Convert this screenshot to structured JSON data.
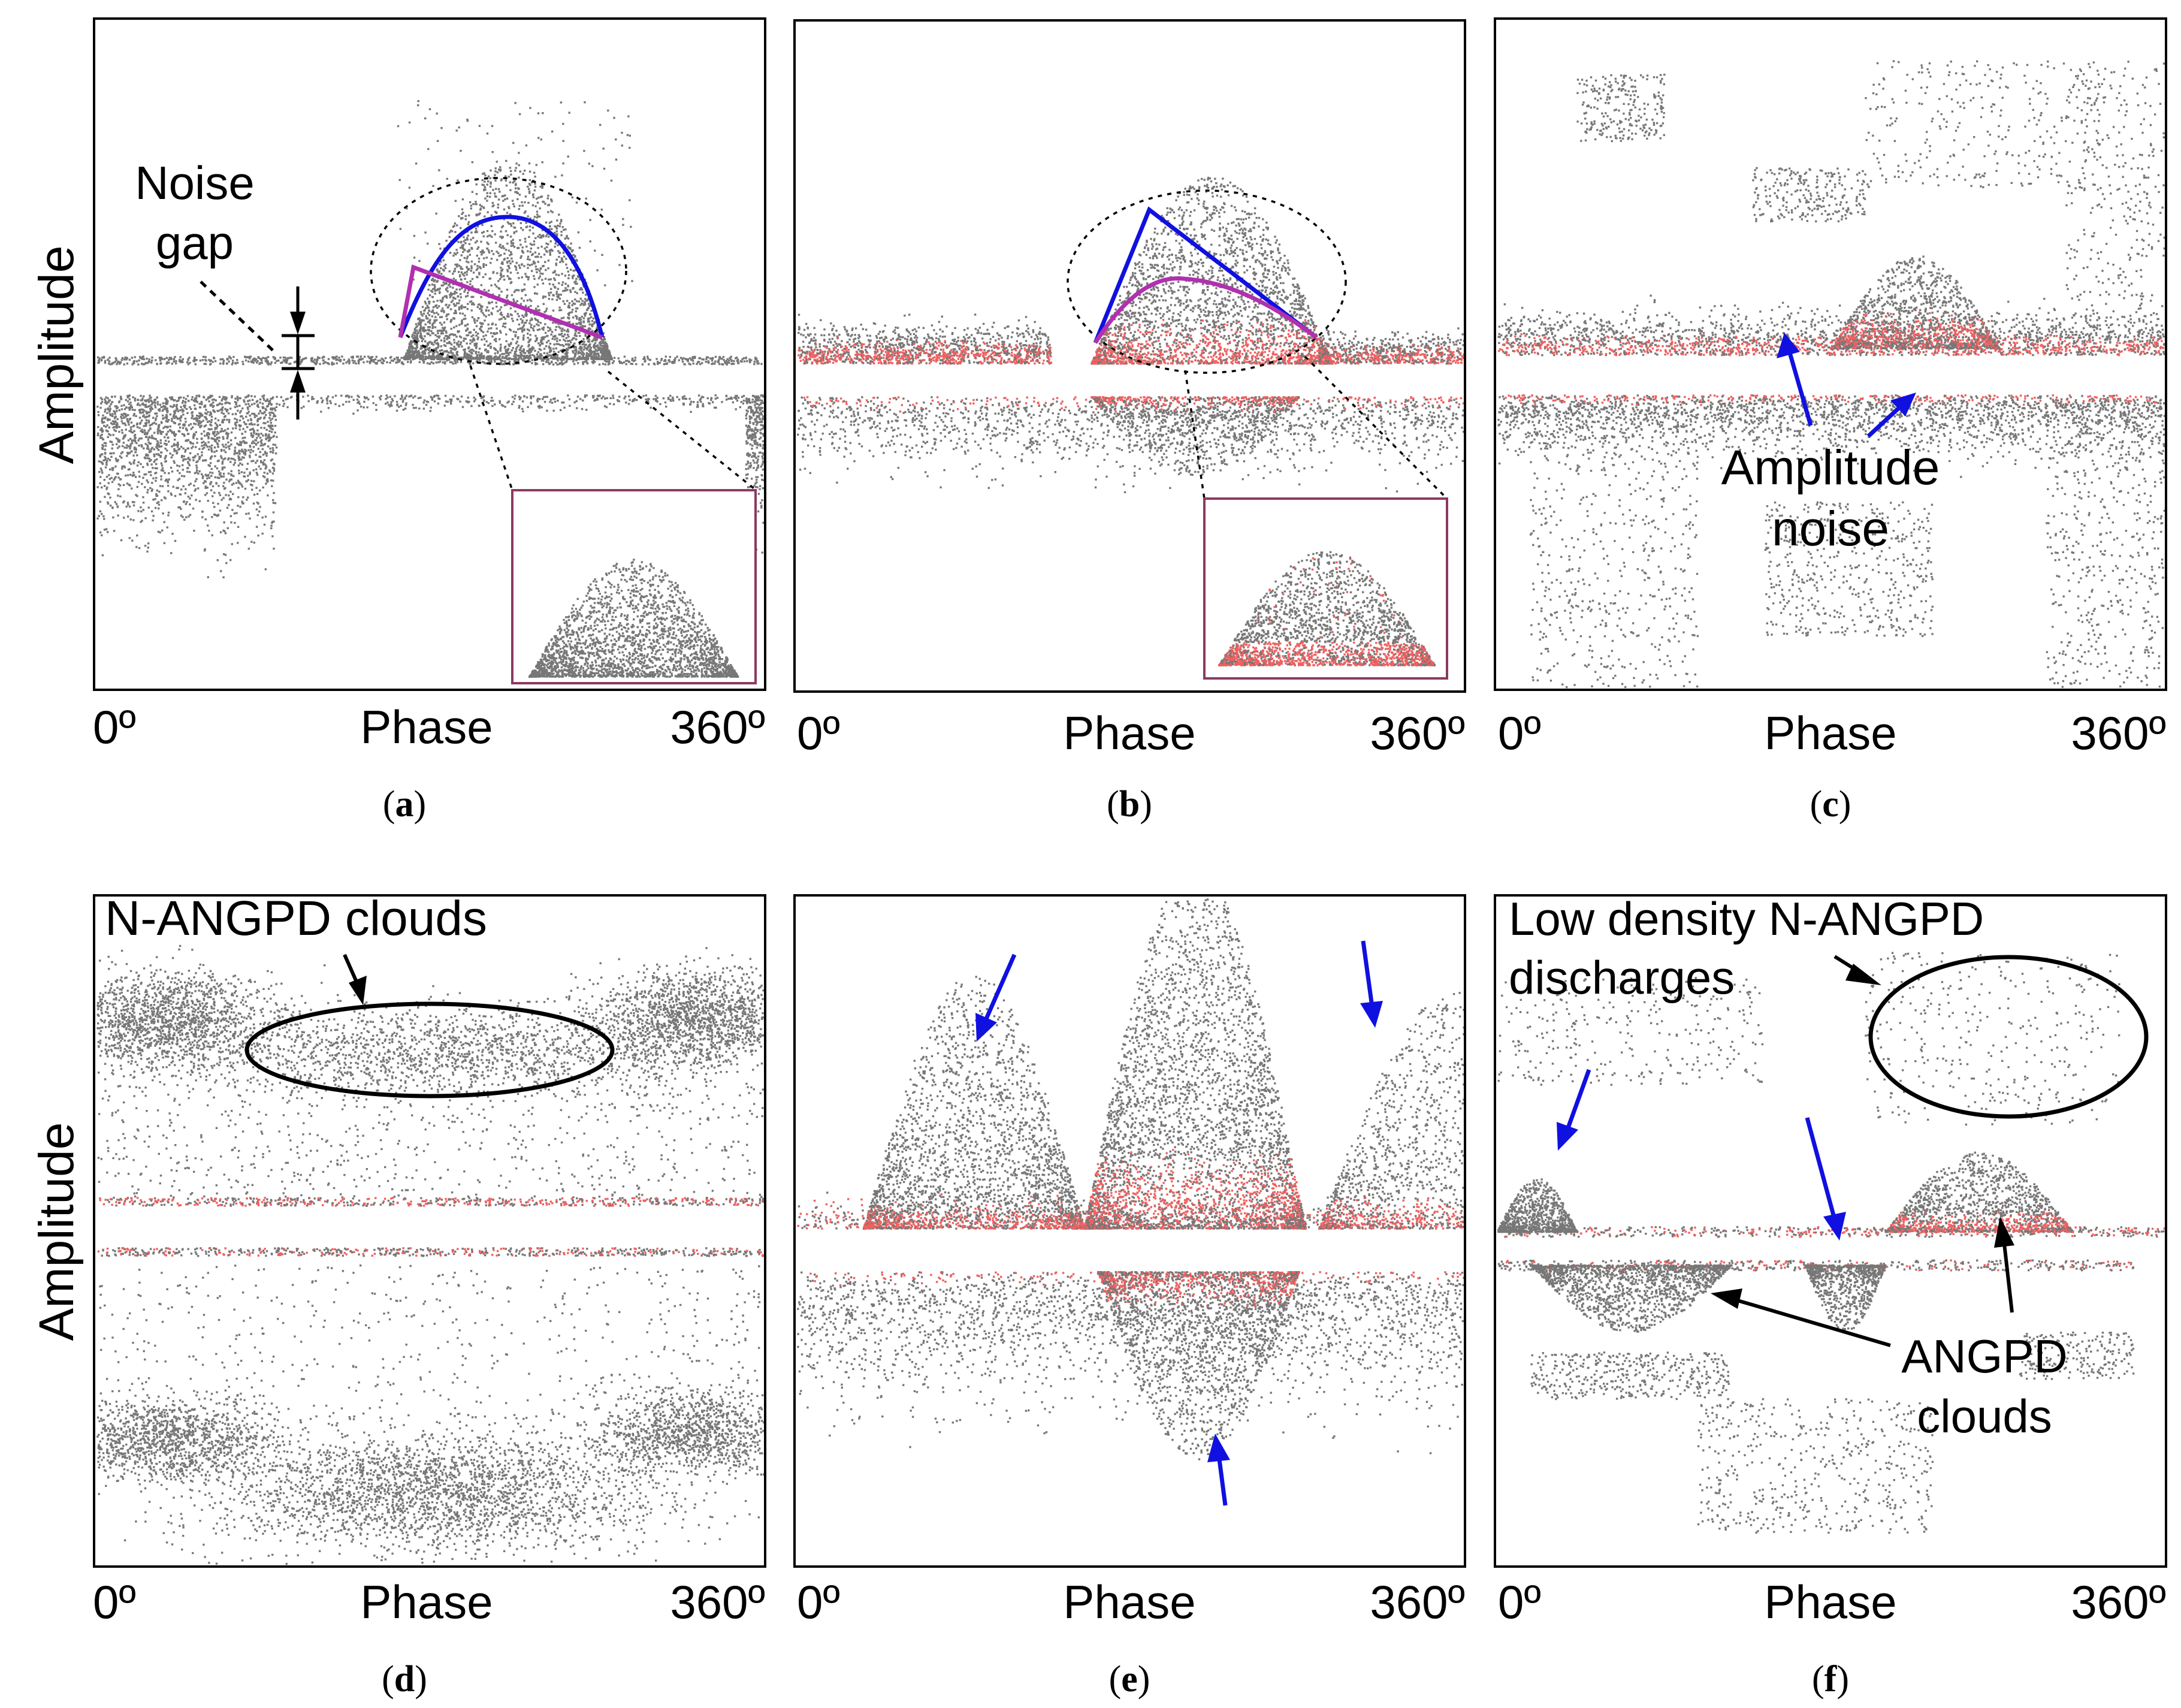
{
  "figure": {
    "ylabel": "Amplitude",
    "panels": [
      {
        "id": "a",
        "caption_open": "(",
        "caption_letter": "a",
        "caption_close": ")",
        "xlabel": "Phase",
        "x_start": "0º",
        "x_end": "360º",
        "annotations": {
          "noise_gap_line1": "Noise",
          "noise_gap_line2": "gap"
        }
      },
      {
        "id": "b",
        "caption_open": "(",
        "caption_letter": "b",
        "caption_close": ")",
        "xlabel": "Phase",
        "x_start": "0º",
        "x_end": "360º"
      },
      {
        "id": "c",
        "caption_open": "(",
        "caption_letter": "c",
        "caption_close": ")",
        "xlabel": "Phase",
        "x_start": "0º",
        "x_end": "360º",
        "annotations": {
          "amp_noise_line1": "Amplitude",
          "amp_noise_line2": "noise"
        }
      },
      {
        "id": "d",
        "caption_open": "(",
        "caption_letter": "d",
        "caption_close": ")",
        "xlabel": "Phase",
        "x_start": "0º",
        "x_end": "360º",
        "annotations": {
          "n_angpd": "N-ANGPD clouds"
        }
      },
      {
        "id": "e",
        "caption_open": "(",
        "caption_letter": "e",
        "caption_close": ")",
        "xlabel": "Phase",
        "x_start": "0º",
        "x_end": "360º"
      },
      {
        "id": "f",
        "caption_open": "(",
        "caption_letter": "f",
        "caption_close": ")",
        "xlabel": "Phase",
        "x_start": "0º",
        "x_end": "360º",
        "annotations": {
          "low_density_line1": "Low density N-ANGPD",
          "low_density_line2": "discharges",
          "angpd_line1": "ANGPD",
          "angpd_line2": "clouds"
        }
      }
    ]
  },
  "chart_data": [
    {
      "panel": "a",
      "type": "scatter",
      "xlabel": "Phase",
      "ylabel": "Amplitude",
      "x_range": [
        0,
        360
      ]
    },
    {
      "panel": "b",
      "type": "scatter",
      "xlabel": "Phase",
      "ylabel": "Amplitude",
      "x_range": [
        0,
        360
      ]
    },
    {
      "panel": "c",
      "type": "scatter",
      "xlabel": "Phase",
      "ylabel": "Amplitude",
      "x_range": [
        0,
        360
      ]
    },
    {
      "panel": "d",
      "type": "scatter",
      "xlabel": "Phase",
      "ylabel": "Amplitude",
      "x_range": [
        0,
        360
      ]
    },
    {
      "panel": "e",
      "type": "scatter",
      "xlabel": "Phase",
      "ylabel": "Amplitude",
      "x_range": [
        0,
        360
      ]
    },
    {
      "panel": "f",
      "type": "scatter",
      "xlabel": "Phase",
      "ylabel": "Amplitude",
      "x_range": [
        0,
        360
      ]
    }
  ],
  "colors": {
    "dots": "#777777",
    "dots_dense": "#f06060",
    "blue": "#1010e0",
    "magenta": "#b030b0",
    "inset_border": "#8b3a62",
    "frame": "#000000"
  }
}
